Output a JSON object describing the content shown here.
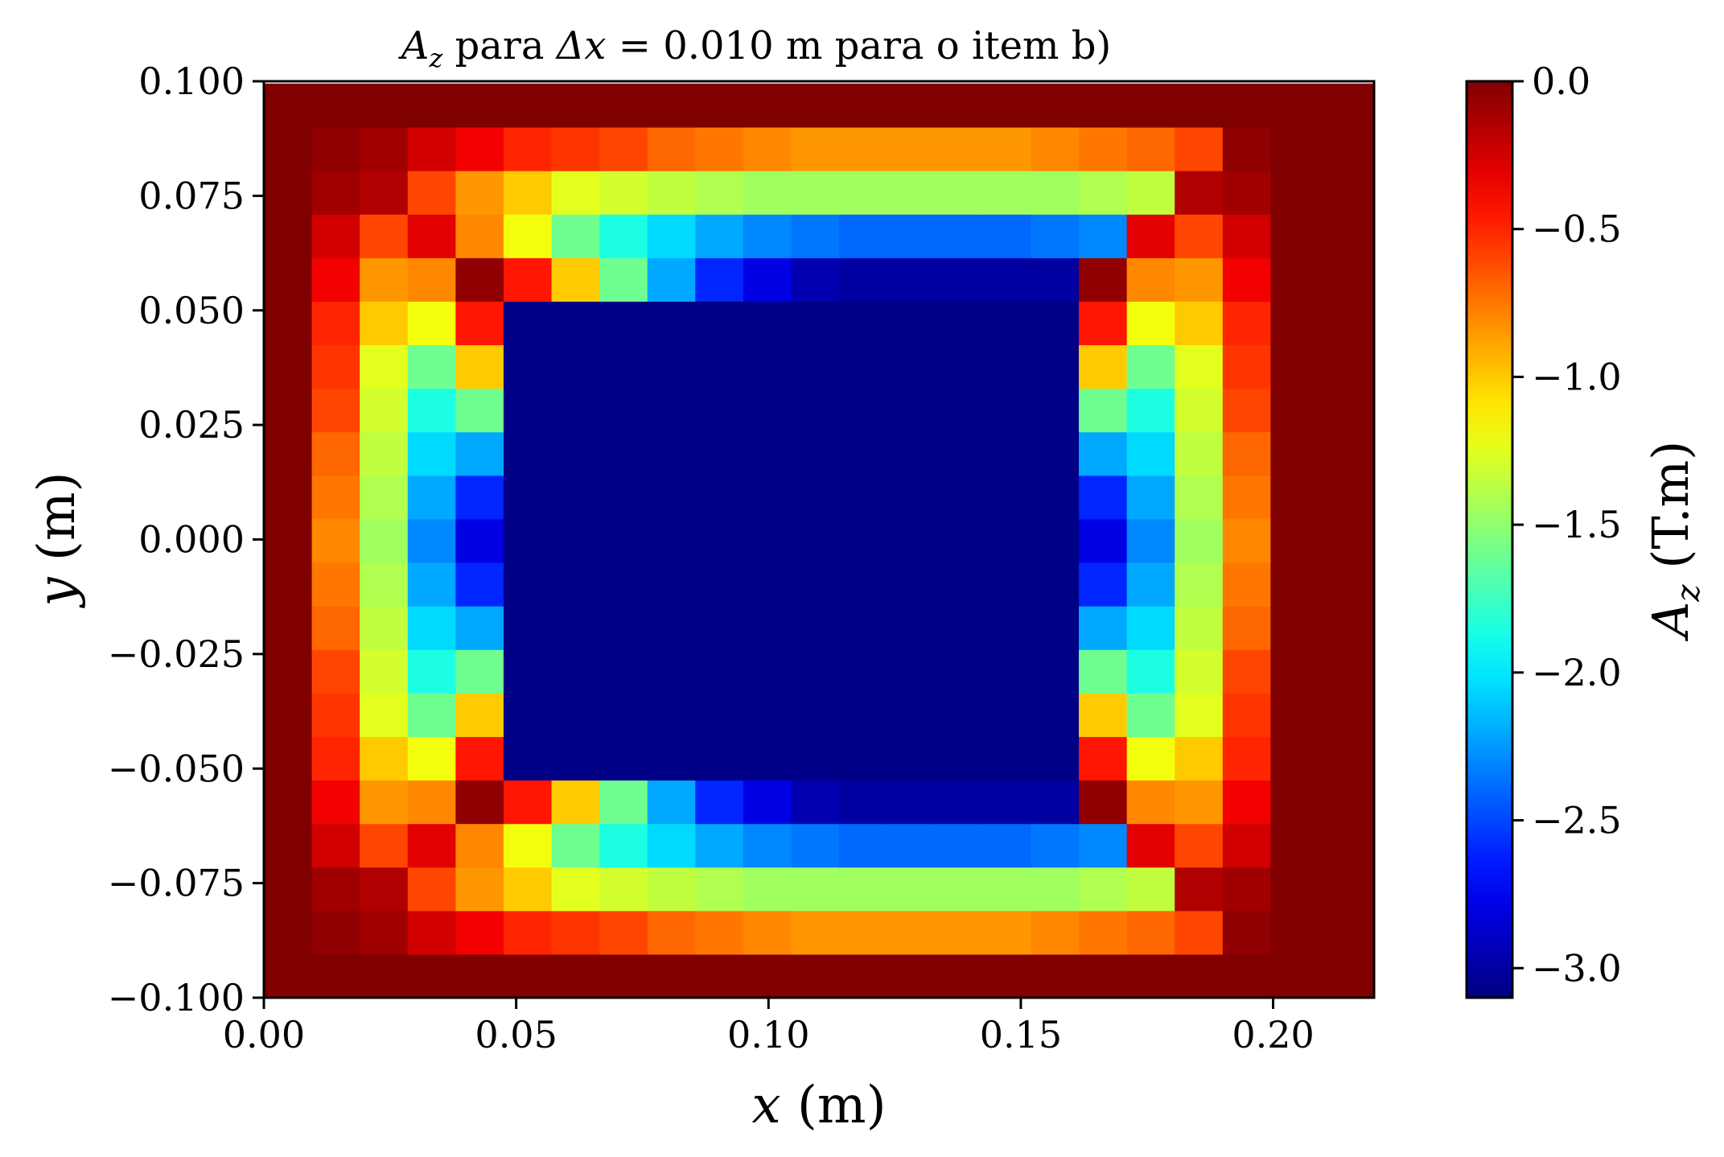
{
  "chart_data": {
    "type": "heatmap",
    "title_math": "A",
    "title_math_sub": "z",
    "title_mid": " para ",
    "title_delta": "Δx",
    "title_eq": " = 0.010",
    "title_tail": " m para o item b)",
    "xlabel_var": "x",
    "xlabel_unit": " (m)",
    "ylabel_var": "y",
    "ylabel_unit": " (m)",
    "colorbar_label_var": "A",
    "colorbar_label_sub": "z",
    "colorbar_label_unit": " (T.m)",
    "colormap": "jet",
    "vmin": -3.1,
    "vmax": 0.0,
    "xlim": [
      0.0,
      0.22
    ],
    "ylim": [
      -0.1,
      0.1
    ],
    "x_ticks": [
      "0.00",
      "0.05",
      "0.10",
      "0.15",
      "0.20"
    ],
    "y_ticks": [
      "0.100",
      "0.075",
      "0.050",
      "0.025",
      "0.000",
      "−0.025",
      "−0.050",
      "−0.075",
      "−0.100"
    ],
    "colorbar_ticks": [
      "0.0",
      "−0.5",
      "−1.0",
      "−1.5",
      "−2.0",
      "−2.5",
      "−3.0"
    ],
    "grid_x_start": 0.0,
    "grid_y_start": -0.1,
    "grid_step": 0.0095,
    "ring_levels": [
      [
        -0.05,
        -0.1,
        -0.25,
        -0.35,
        -0.5,
        -0.55,
        -0.6,
        -0.7,
        -0.75,
        -0.8,
        -0.85,
        -0.85,
        -0.85,
        -0.85,
        -0.85,
        -0.8,
        -0.75,
        -0.7,
        -0.6,
        -0.5,
        -0.35,
        -0.25,
        -0.1,
        -0.05
      ],
      [
        -0.15,
        -0.6,
        -0.85,
        -1.0,
        -1.25,
        -1.3,
        -1.35,
        -1.4,
        -1.45,
        -1.45,
        -1.45,
        -1.45,
        -1.45,
        -1.45,
        -1.45,
        -1.4,
        -1.35,
        -1.3,
        -1.25,
        -1.0,
        -0.85,
        -0.6,
        -0.15
      ],
      [
        -0.3,
        -0.8,
        -1.2,
        -1.6,
        -1.85,
        -2.05,
        -2.2,
        -2.3,
        -2.35,
        -2.4,
        -2.4,
        -2.4,
        -2.4,
        -2.35,
        -2.3,
        -2.2,
        -2.05,
        -1.85,
        -1.6,
        -1.2,
        -0.8,
        -0.3
      ],
      [
        -0.05,
        -0.45,
        -1.0,
        -1.6,
        -2.2,
        -2.6,
        -2.8,
        -2.95,
        -3.0,
        -3.0,
        -3.0,
        -3.0,
        -3.0,
        -3.0,
        -3.0,
        -2.95,
        -2.8,
        -2.6,
        -2.2,
        -1.6,
        -1.0,
        -0.45,
        -0.05
      ]
    ],
    "interior_value": -3.08
  }
}
